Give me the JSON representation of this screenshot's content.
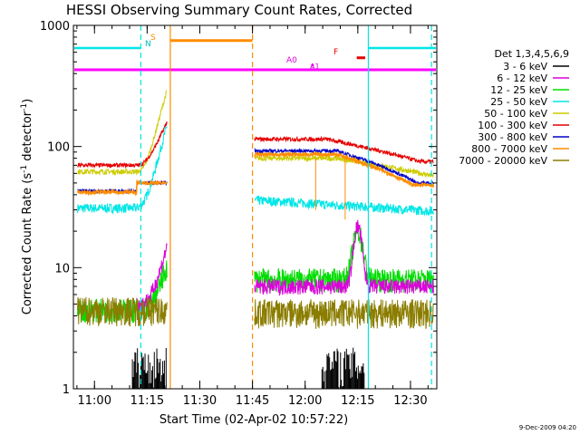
{
  "chart_data": {
    "type": "line",
    "title": "HESSI Observing Summary Count Rates, Corrected",
    "xlabel": "Start Time (02-Apr-02 10:57:22)",
    "ylabel_main": "Corrected Count Rate (s",
    "ylabel_sup1": "-1",
    "ylabel_mid": " detector",
    "ylabel_sup2": "-1",
    "ylabel_end": ")",
    "ylim": [
      1,
      1000
    ],
    "yscale": "log",
    "xlim_minutes": [
      10.9,
      12.625
    ],
    "x_ticks": [
      {
        "label": "11:00",
        "h": 11.0
      },
      {
        "label": "11:15",
        "h": 11.25
      },
      {
        "label": "11:30",
        "h": 11.5
      },
      {
        "label": "11:45",
        "h": 11.75
      },
      {
        "label": "12:00",
        "h": 12.0
      },
      {
        "label": "12:15",
        "h": 12.25
      },
      {
        "label": "12:30",
        "h": 12.5
      }
    ],
    "y_ticks": [
      {
        "label": "1",
        "v": 1
      },
      {
        "label": "10",
        "v": 10
      },
      {
        "label": "100",
        "v": 100
      },
      {
        "label": "1000",
        "v": 1000
      }
    ],
    "legend_title": "Det 1,3,4,5,6,9",
    "legend_placement": "right",
    "series": [
      {
        "name": "3 - 6 keV",
        "color": "#000000"
      },
      {
        "name": "6 - 12 keV",
        "color": "#dd00dd"
      },
      {
        "name": "12 - 25 keV",
        "color": "#00dd00"
      },
      {
        "name": "25 - 50 keV",
        "color": "#00e6e6"
      },
      {
        "name": "50 - 100 keV",
        "color": "#cccc00"
      },
      {
        "name": "100 - 300 keV",
        "color": "#e60000"
      },
      {
        "name": "300 - 800 keV",
        "color": "#0000cc"
      },
      {
        "name": "800 - 7000 keV",
        "color": "#ff8c00"
      },
      {
        "name": "7000 - 20000 keV",
        "color": "#8b7d00"
      }
    ],
    "annotations": {
      "N": "N",
      "S": "S",
      "A0": "A0",
      "A1": "A1",
      "F": "F"
    },
    "footer_date": "9-Dec-2009 04:20"
  }
}
